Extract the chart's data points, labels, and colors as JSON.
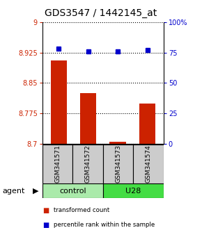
{
  "title": "GDS3547 / 1442145_at",
  "samples": [
    "GSM341571",
    "GSM341572",
    "GSM341573",
    "GSM341574"
  ],
  "bar_values": [
    8.905,
    8.825,
    8.705,
    8.8
  ],
  "percentile_values": [
    78,
    76,
    76,
    77
  ],
  "ylim_left": [
    8.7,
    9.0
  ],
  "ylim_right": [
    0,
    100
  ],
  "yticks_left": [
    8.7,
    8.775,
    8.85,
    8.925,
    9.0
  ],
  "yticks_right": [
    0,
    25,
    50,
    75,
    100
  ],
  "ytick_labels_left": [
    "8.7",
    "8.775",
    "8.85",
    "8.925",
    "9"
  ],
  "ytick_labels_right": [
    "0",
    "25",
    "50",
    "75",
    "100%"
  ],
  "bar_color": "#cc2200",
  "dot_color": "#0000cc",
  "groups": [
    {
      "label": "control",
      "samples": [
        0,
        1
      ],
      "color": "#aaeaaa"
    },
    {
      "label": "U28",
      "samples": [
        2,
        3
      ],
      "color": "#44dd44"
    }
  ],
  "sample_box_color": "#cccccc",
  "legend_items": [
    {
      "color": "#cc2200",
      "label": "transformed count"
    },
    {
      "color": "#0000cc",
      "label": "percentile rank within the sample"
    }
  ],
  "agent_label": "agent",
  "title_fontsize": 10,
  "tick_fontsize": 7,
  "label_fontsize": 7,
  "group_fontsize": 8
}
